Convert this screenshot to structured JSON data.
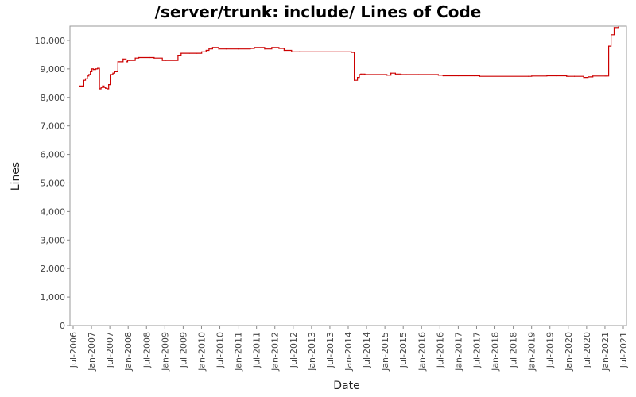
{
  "chart_data": {
    "type": "line",
    "title": "/server/trunk: include/ Lines of Code",
    "xlabel": "Date",
    "ylabel": "Lines",
    "ylim": [
      0,
      10500
    ],
    "xlim": [
      "2006-07-01",
      "2021-07-01"
    ],
    "grid": false,
    "line_color": "#cc0000",
    "x_tick_labels": [
      "Jul-2006",
      "Jan-2007",
      "Jul-2007",
      "Jan-2008",
      "Jul-2008",
      "Jan-2009",
      "Jul-2009",
      "Jan-2010",
      "Jul-2010",
      "Jan-2011",
      "Jul-2011",
      "Jan-2012",
      "Jul-2012",
      "Jan-2013",
      "Jul-2013",
      "Jan-2014",
      "Jul-2014",
      "Jan-2015",
      "Jul-2015",
      "Jan-2016",
      "Jul-2016",
      "Jan-2017",
      "Jul-2017",
      "Jan-2018",
      "Jul-2018",
      "Jan-2019",
      "Jul-2019",
      "Jan-2020",
      "Jul-2020",
      "Jan-2021",
      "Jul-2021"
    ],
    "y_ticks": [
      0,
      1000,
      2000,
      3000,
      4000,
      5000,
      6000,
      7000,
      8000,
      9000,
      10000
    ],
    "y_tick_labels": [
      "0",
      "1,000",
      "2,000",
      "3,000",
      "4,000",
      "5,000",
      "6,000",
      "7,000",
      "8,000",
      "9,000",
      "10,000"
    ],
    "series": [
      {
        "x": [
          "2006-09-01",
          "2006-10-15",
          "2006-11-01",
          "2006-11-20",
          "2006-12-05",
          "2006-12-20",
          "2007-01-05",
          "2007-01-20",
          "2007-02-10",
          "2007-03-01",
          "2007-03-20",
          "2007-04-05",
          "2007-04-20",
          "2007-05-05",
          "2007-05-20",
          "2007-06-05",
          "2007-06-20",
          "2007-07-05",
          "2007-08-01",
          "2007-08-20",
          "2007-09-20",
          "2007-11-10",
          "2007-12-10",
          "2007-12-25",
          "2008-01-10",
          "2008-03-10",
          "2008-04-15",
          "2008-08-01",
          "2008-09-15",
          "2008-12-05",
          "2009-01-10",
          "2009-05-10",
          "2009-06-10",
          "2009-09-01",
          "2009-11-15",
          "2010-01-01",
          "2010-02-15",
          "2010-03-15",
          "2010-04-20",
          "2010-06-20",
          "2010-09-01",
          "2010-10-20",
          "2011-01-05",
          "2011-05-01",
          "2011-06-10",
          "2011-09-20",
          "2011-12-01",
          "2012-02-10",
          "2012-04-01",
          "2012-06-15",
          "2012-09-01",
          "2014-02-01",
          "2014-03-01",
          "2014-04-01",
          "2014-04-20",
          "2014-05-05",
          "2014-06-15",
          "2015-01-20",
          "2015-03-01",
          "2015-04-15",
          "2015-06-10",
          "2015-08-01",
          "2015-12-01",
          "2016-06-15",
          "2016-08-01",
          "2017-01-01",
          "2017-06-10",
          "2017-08-01",
          "2018-12-01",
          "2019-01-01",
          "2019-06-01",
          "2019-09-01",
          "2019-12-15",
          "2020-01-01",
          "2020-03-01",
          "2020-06-01",
          "2020-07-15",
          "2020-09-01",
          "2021-01-01",
          "2021-01-15",
          "2021-02-05",
          "2021-03-01",
          "2021-04-01",
          "2021-05-15"
        ],
        "y": [
          8400,
          8600,
          8650,
          8750,
          8800,
          8900,
          9000,
          8980,
          9000,
          9020,
          8300,
          8350,
          8400,
          8350,
          8320,
          8300,
          8450,
          8800,
          8850,
          8900,
          9250,
          9350,
          9250,
          9300,
          9300,
          9380,
          9400,
          9400,
          9380,
          9300,
          9300,
          9480,
          9550,
          9550,
          9550,
          9600,
          9650,
          9700,
          9750,
          9700,
          9700,
          9700,
          9700,
          9720,
          9750,
          9700,
          9750,
          9720,
          9650,
          9600,
          9600,
          9580,
          8600,
          8700,
          8800,
          8820,
          8800,
          8780,
          8850,
          8820,
          8800,
          8800,
          8800,
          8780,
          8760,
          8760,
          8760,
          8740,
          8740,
          8750,
          8760,
          8760,
          8740,
          8740,
          8740,
          8700,
          8720,
          8750,
          8750,
          8750,
          9800,
          10200,
          10450,
          10480
        ]
      }
    ]
  }
}
